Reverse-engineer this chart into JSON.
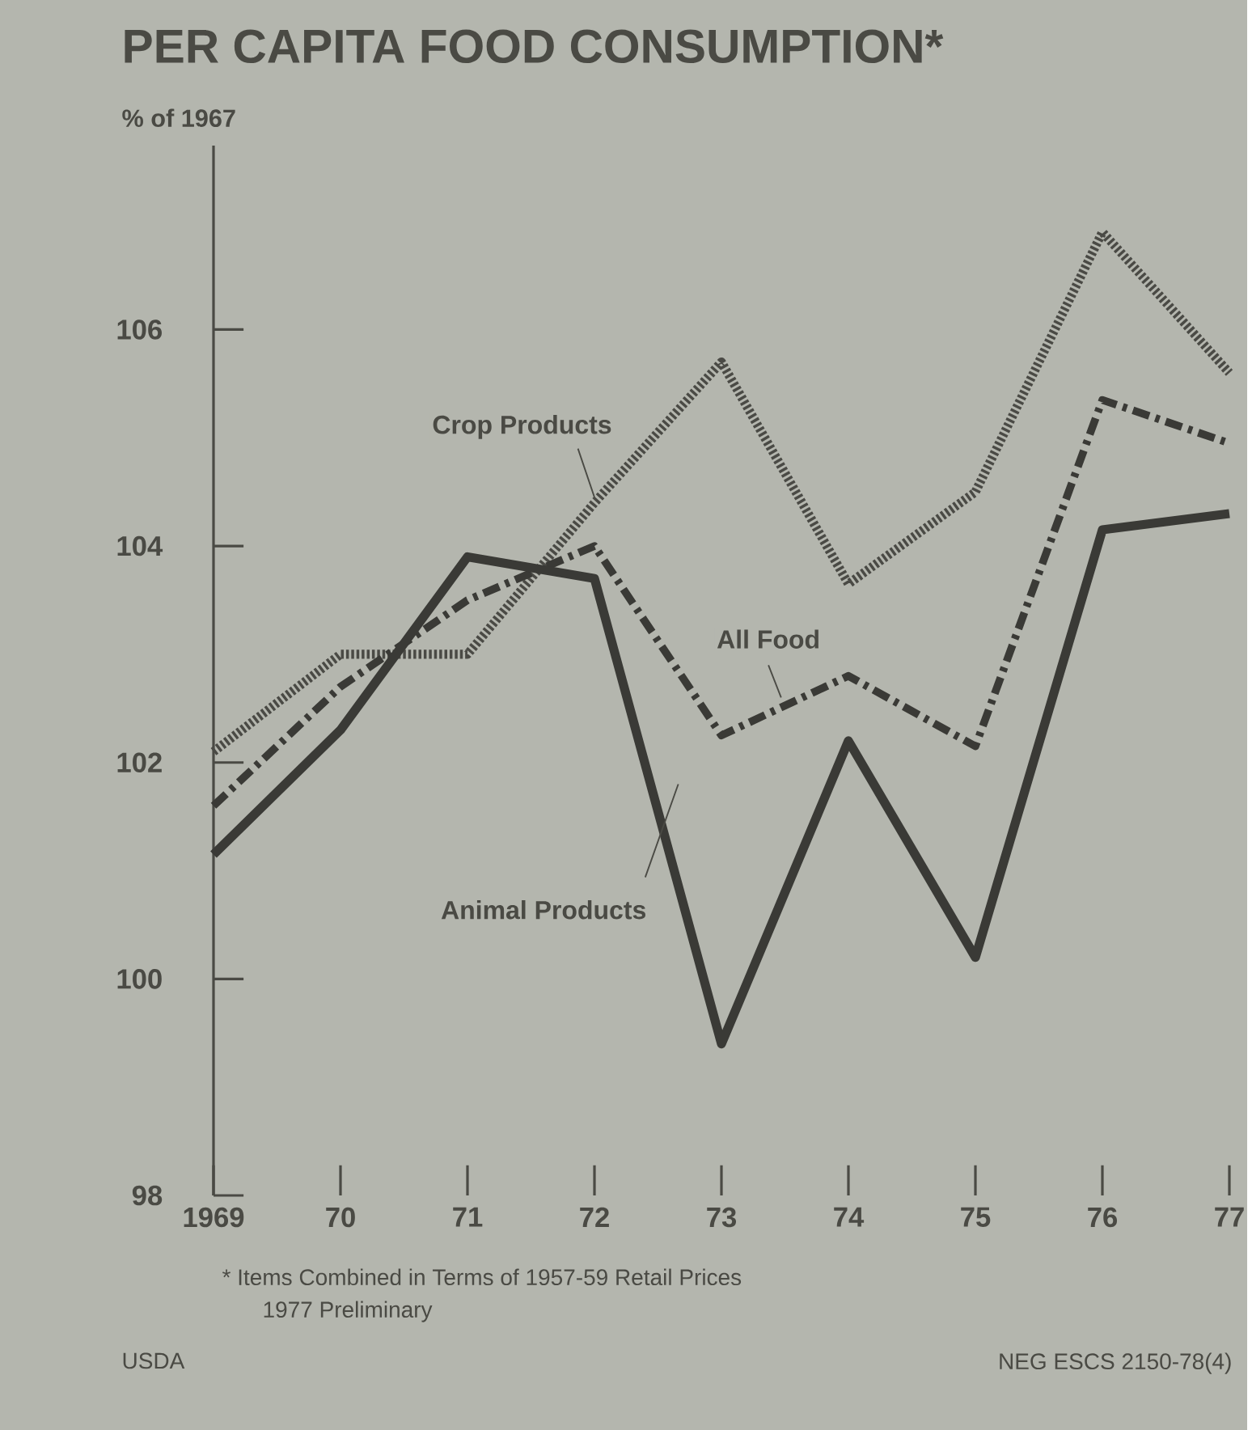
{
  "chart_data": {
    "type": "line",
    "title": "PER CAPITA FOOD CONSUMPTION*",
    "ylabel": "% of 1967",
    "x": [
      1969,
      1970,
      1971,
      1972,
      1973,
      1974,
      1975,
      1976,
      1977
    ],
    "xlim": [
      1969,
      1977
    ],
    "ylim": [
      98,
      107.7
    ],
    "xticks": [
      {
        "value": 1969,
        "label": "1969"
      },
      {
        "value": 1970,
        "label": "70"
      },
      {
        "value": 1971,
        "label": "71"
      },
      {
        "value": 1972,
        "label": "72"
      },
      {
        "value": 1973,
        "label": "73"
      },
      {
        "value": 1974,
        "label": "74"
      },
      {
        "value": 1975,
        "label": "75"
      },
      {
        "value": 1976,
        "label": "76"
      },
      {
        "value": 1977,
        "label": "77"
      }
    ],
    "yticks": [
      98,
      100,
      102,
      104,
      106
    ],
    "series": [
      {
        "name": "Crop Products",
        "color": "#4a4a45",
        "line_style": "dotted",
        "values": [
          102.1,
          103.0,
          103.0,
          104.4,
          105.7,
          103.65,
          104.5,
          106.9,
          105.6
        ]
      },
      {
        "name": "All Food",
        "color": "#3a3a36",
        "line_style": "dashdot",
        "values": [
          101.6,
          102.7,
          103.5,
          104.0,
          102.25,
          102.8,
          102.15,
          105.35,
          104.95
        ]
      },
      {
        "name": "Animal Products",
        "color": "#3a3a36",
        "line_style": "solid",
        "values": [
          101.15,
          102.3,
          103.9,
          103.7,
          99.4,
          102.2,
          100.2,
          104.15,
          104.3
        ]
      }
    ],
    "annotations": [
      "* Items Combined in Terms of 1957-59 Retail Prices",
      "1977 Preliminary",
      "USDA",
      "NEG ESCS 2150-78(4)"
    ]
  }
}
